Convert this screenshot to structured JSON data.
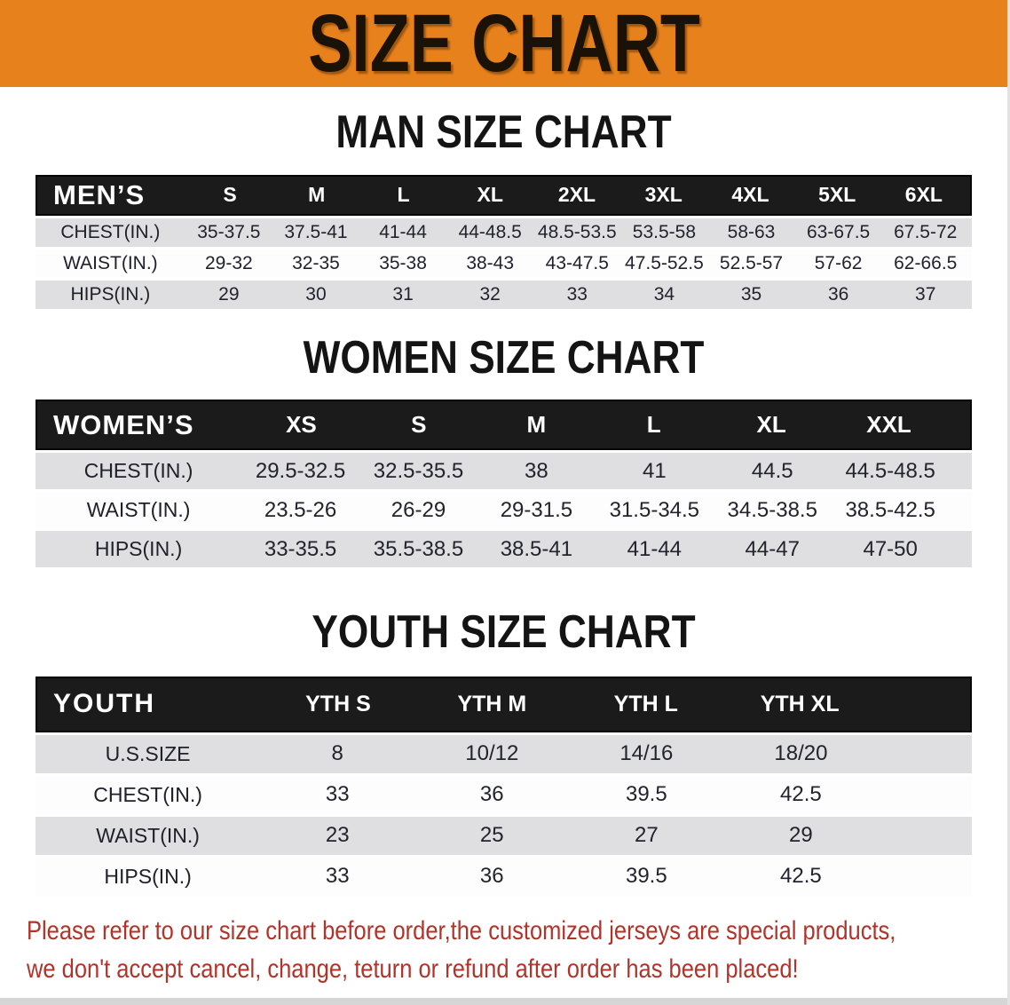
{
  "banner": {
    "title": "SIZE CHART",
    "bg_color": "#E6811C",
    "text_color": "#1a1206"
  },
  "sections": [
    {
      "heading": "MAN SIZE CHART",
      "table": {
        "label": "MEN’S",
        "sizes": [
          "S",
          "M",
          "L",
          "XL",
          "2XL",
          "3XL",
          "4XL",
          "5XL",
          "6XL"
        ],
        "rows": [
          {
            "label": "CHEST(IN.)",
            "values": [
              "35-37.5",
              "37.5-41",
              "41-44",
              "44-48.5",
              "48.5-53.5",
              "53.5-58",
              "58-63",
              "63-67.5",
              "67.5-72"
            ]
          },
          {
            "label": "WAIST(IN.)",
            "values": [
              "29-32",
              "32-35",
              "35-38",
              "38-43",
              "43-47.5",
              "47.5-52.5",
              "52.5-57",
              "57-62",
              "62-66.5"
            ]
          },
          {
            "label": "HIPS(IN.)",
            "values": [
              "29",
              "30",
              "31",
              "32",
              "33",
              "34",
              "35",
              "36",
              "37"
            ]
          }
        ]
      }
    },
    {
      "heading": "WOMEN SIZE CHART",
      "table": {
        "label": "WOMEN’S",
        "sizes": [
          "XS",
          "S",
          "M",
          "L",
          "XL",
          "XXL"
        ],
        "rows": [
          {
            "label": "CHEST(IN.)",
            "values": [
              "29.5-32.5",
              "32.5-35.5",
              "38",
              "41",
              "44.5",
              "44.5-48.5"
            ]
          },
          {
            "label": "WAIST(IN.)",
            "values": [
              "23.5-26",
              "26-29",
              "29-31.5",
              "31.5-34.5",
              "34.5-38.5",
              "38.5-42.5"
            ]
          },
          {
            "label": "HIPS(IN.)",
            "values": [
              "33-35.5",
              "35.5-38.5",
              "38.5-41",
              "41-44",
              "44-47",
              "47-50"
            ]
          }
        ]
      }
    },
    {
      "heading": "YOUTH SIZE CHART",
      "table": {
        "label": "YOUTH",
        "sizes": [
          "YTH S",
          "YTH M",
          "YTH L",
          "YTH XL"
        ],
        "rows": [
          {
            "label": "U.S.SIZE",
            "values": [
              "8",
              "10/12",
              "14/16",
              "18/20"
            ]
          },
          {
            "label": "CHEST(IN.)",
            "values": [
              "33",
              "36",
              "39.5",
              "42.5"
            ]
          },
          {
            "label": "WAIST(IN.)",
            "values": [
              "23",
              "25",
              "27",
              "29"
            ]
          },
          {
            "label": "HIPS(IN.)",
            "values": [
              "33",
              "36",
              "39.5",
              "42.5"
            ]
          }
        ]
      }
    }
  ],
  "disclaimer": {
    "line1": "Please refer to our size chart before order,the customized jerseys are special products,",
    "line2": "we don't accept cancel, change, teturn or refund after order has been placed!",
    "color": "#B1332A"
  },
  "colors": {
    "table_header_bg": "#1B1B1B",
    "table_header_text": "#FFFFFF",
    "row_gray": "#DFDFE1",
    "row_white": "#FDFDFD"
  }
}
